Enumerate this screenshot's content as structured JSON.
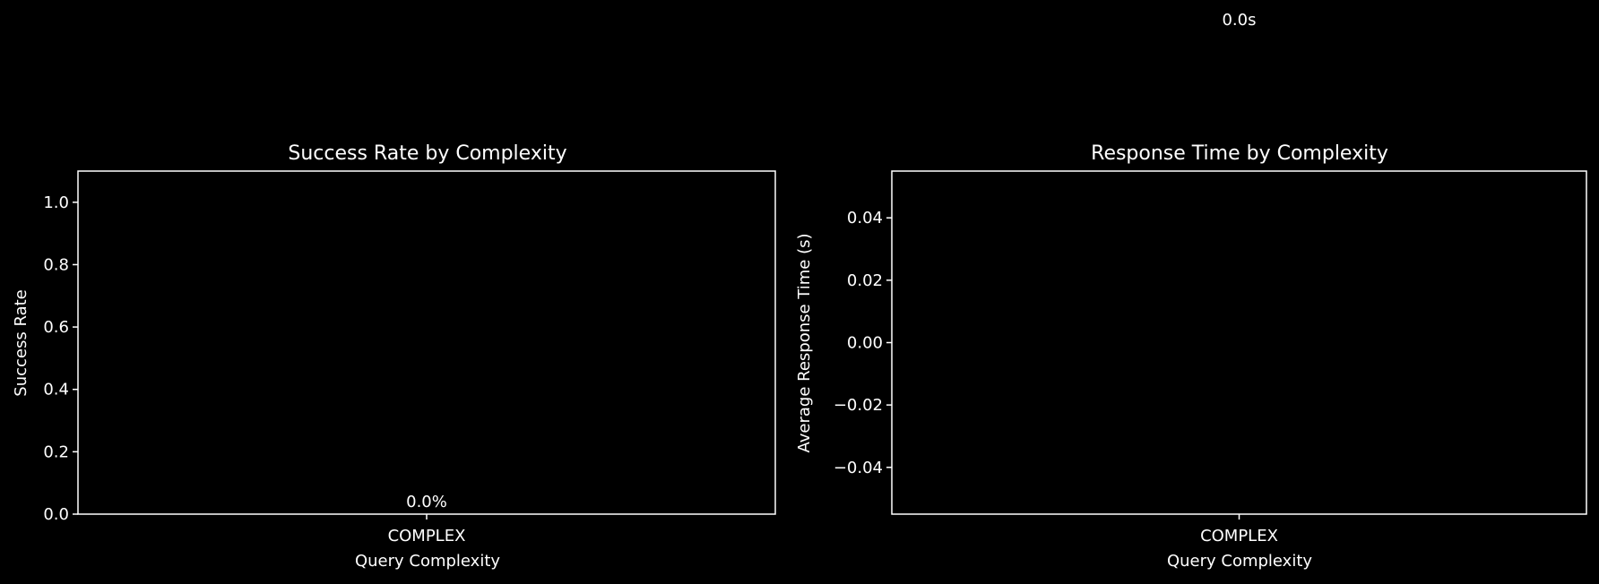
{
  "colors": {
    "background": "#000000",
    "foreground": "#ffffff"
  },
  "chart_data": [
    {
      "type": "bar",
      "title": "Success Rate by Complexity",
      "xlabel": "Query Complexity",
      "ylabel": "Success Rate",
      "categories": [
        "COMPLEX"
      ],
      "values": [
        0.0
      ],
      "data_labels": [
        "0.0%"
      ],
      "ylim": [
        0,
        1.1
      ],
      "yticks": [
        0.0,
        0.2,
        0.4,
        0.6,
        0.8,
        1.0
      ],
      "ytick_labels": [
        "0.0",
        "0.2",
        "0.4",
        "0.6",
        "0.8",
        "1.0"
      ],
      "grid": false,
      "legend": "none"
    },
    {
      "type": "bar",
      "title": "Response Time by Complexity",
      "xlabel": "Query Complexity",
      "ylabel": "Average Response Time (s)",
      "categories": [
        "COMPLEX"
      ],
      "values": [
        0.0
      ],
      "data_labels": [
        "0.0s"
      ],
      "ylim": [
        -0.055,
        0.055
      ],
      "yticks": [
        -0.04,
        -0.02,
        0.0,
        0.02,
        0.04
      ],
      "ytick_labels": [
        "−0.04",
        "−0.02",
        "0.00",
        "0.02",
        "0.04"
      ],
      "grid": false,
      "legend": "none"
    }
  ]
}
